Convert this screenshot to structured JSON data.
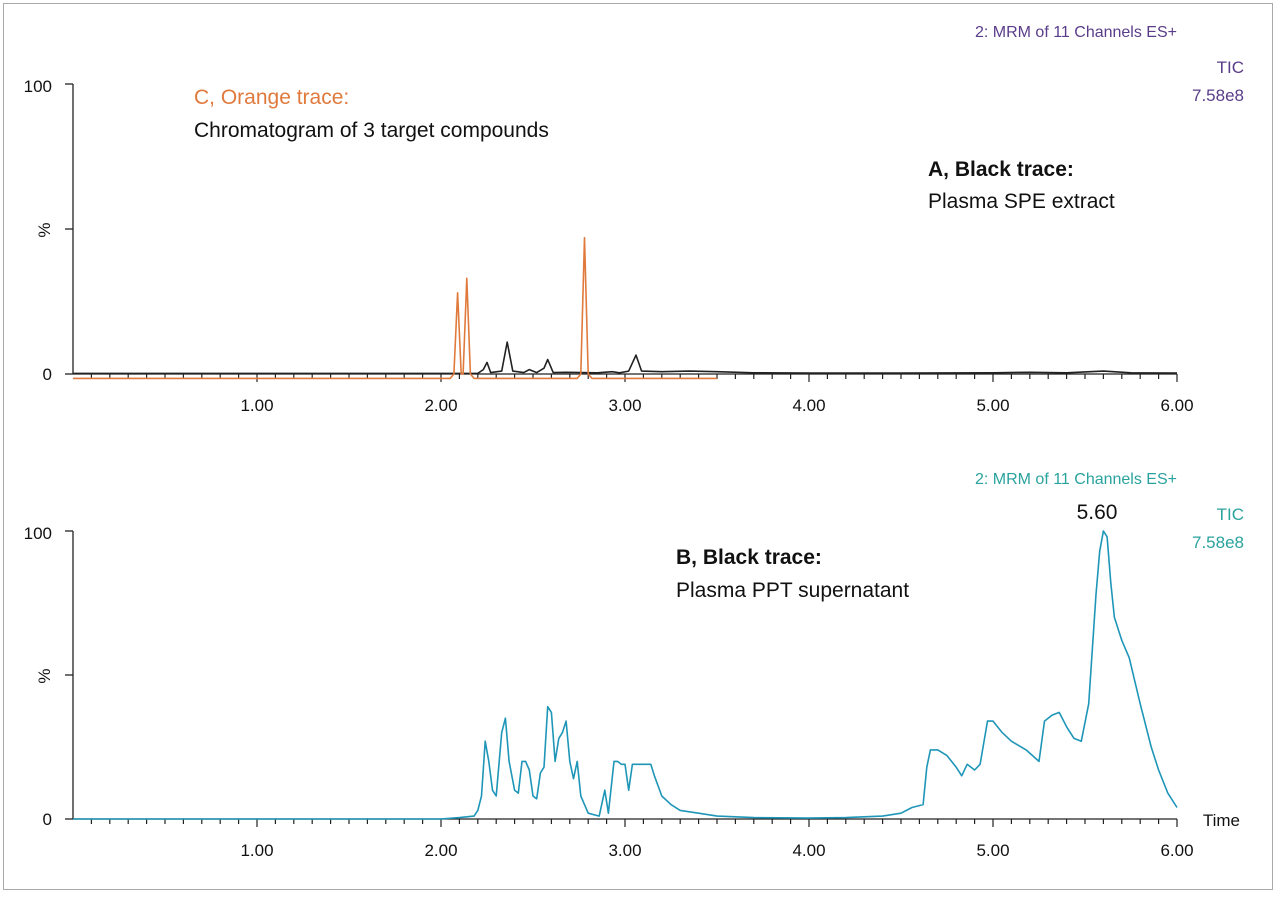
{
  "colors": {
    "axis": "#222222",
    "trace_a": "#222222",
    "trace_c": "#e07a3c",
    "trace_b": "#1f96b8",
    "header_top": "#5a3d8a",
    "header_bottom": "#2aa39e",
    "annotation_c": "#e07a3c",
    "annotation_text": "#111111"
  },
  "chart_data": [
    {
      "type": "line",
      "header": "2: MRM of 11 Channels ES+",
      "tic_label": "TIC",
      "tic_value": "7.58e8",
      "ylabel": "%",
      "xlabel": "",
      "ylim": [
        0,
        100
      ],
      "xlim": [
        0,
        6.0
      ],
      "y_tick_labels": [
        "100",
        "0"
      ],
      "x_tick_labels": [
        "1.00",
        "2.00",
        "3.00",
        "4.00",
        "5.00",
        "6.00"
      ],
      "annotations": [
        {
          "title": "C, Orange trace:",
          "text": "Chromatogram of 3 target compounds"
        },
        {
          "title": "A, Black trace:",
          "text": "Plasma SPE extract"
        }
      ],
      "series": [
        {
          "name": "A",
          "color_key": "trace_a",
          "points": [
            [
              0.0,
              0.2
            ],
            [
              2.2,
              0.2
            ],
            [
              2.23,
              1.5
            ],
            [
              2.25,
              4
            ],
            [
              2.27,
              0.5
            ],
            [
              2.33,
              1
            ],
            [
              2.36,
              11
            ],
            [
              2.39,
              1
            ],
            [
              2.45,
              0.5
            ],
            [
              2.48,
              1.5
            ],
            [
              2.52,
              0.5
            ],
            [
              2.56,
              2
            ],
            [
              2.58,
              5
            ],
            [
              2.61,
              0.5
            ],
            [
              2.68,
              0.6
            ],
            [
              2.85,
              0.4
            ],
            [
              2.93,
              0.8
            ],
            [
              2.97,
              0.4
            ],
            [
              3.02,
              1
            ],
            [
              3.06,
              6.5
            ],
            [
              3.09,
              1
            ],
            [
              3.2,
              0.8
            ],
            [
              3.35,
              1
            ],
            [
              3.5,
              0.8
            ],
            [
              3.7,
              0.4
            ],
            [
              4.0,
              0.3
            ],
            [
              4.5,
              0.3
            ],
            [
              5.0,
              0.4
            ],
            [
              5.2,
              0.6
            ],
            [
              5.4,
              0.4
            ],
            [
              5.6,
              1.0
            ],
            [
              5.75,
              0.4
            ],
            [
              6.0,
              0.3
            ]
          ]
        },
        {
          "name": "C",
          "color_key": "trace_c",
          "points": [
            [
              0.0,
              -1.5
            ],
            [
              2.05,
              -1.5
            ],
            [
              2.07,
              0
            ],
            [
              2.09,
              28
            ],
            [
              2.11,
              0
            ],
            [
              2.12,
              0
            ],
            [
              2.14,
              33
            ],
            [
              2.16,
              0
            ],
            [
              2.18,
              -1.5
            ],
            [
              2.74,
              -1.5
            ],
            [
              2.76,
              0
            ],
            [
              2.78,
              47
            ],
            [
              2.8,
              0
            ],
            [
              2.82,
              -1.5
            ],
            [
              3.5,
              -1.5
            ]
          ]
        }
      ]
    },
    {
      "type": "line",
      "header": "2: MRM of 11 Channels ES+",
      "tic_label": "TIC",
      "tic_value": "7.58e8",
      "ylabel": "%",
      "xlabel": "Time",
      "ylim": [
        0,
        100
      ],
      "xlim": [
        0,
        6.0
      ],
      "y_tick_labels": [
        "100",
        "0"
      ],
      "x_tick_labels": [
        "1.00",
        "2.00",
        "3.00",
        "4.00",
        "5.00",
        "6.00"
      ],
      "peak_label": "5.60",
      "peak_x": 5.6,
      "peak_y": 100,
      "annotations": [
        {
          "title": "B, Black trace:",
          "text": "Plasma PPT supernatant"
        }
      ],
      "series": [
        {
          "name": "B",
          "color_key": "trace_b",
          "points": [
            [
              0.0,
              0
            ],
            [
              2.0,
              0
            ],
            [
              2.1,
              0.5
            ],
            [
              2.18,
              1
            ],
            [
              2.2,
              3
            ],
            [
              2.22,
              8
            ],
            [
              2.24,
              27
            ],
            [
              2.26,
              20
            ],
            [
              2.28,
              10
            ],
            [
              2.3,
              8
            ],
            [
              2.33,
              30
            ],
            [
              2.35,
              35
            ],
            [
              2.37,
              20
            ],
            [
              2.4,
              10
            ],
            [
              2.42,
              9
            ],
            [
              2.44,
              20
            ],
            [
              2.46,
              20
            ],
            [
              2.48,
              17
            ],
            [
              2.5,
              8
            ],
            [
              2.52,
              7
            ],
            [
              2.54,
              16
            ],
            [
              2.56,
              18
            ],
            [
              2.58,
              39
            ],
            [
              2.6,
              37
            ],
            [
              2.62,
              20
            ],
            [
              2.64,
              28
            ],
            [
              2.66,
              30
            ],
            [
              2.68,
              34
            ],
            [
              2.7,
              20
            ],
            [
              2.72,
              14
            ],
            [
              2.74,
              20
            ],
            [
              2.76,
              8
            ],
            [
              2.8,
              2
            ],
            [
              2.86,
              1
            ],
            [
              2.89,
              10
            ],
            [
              2.91,
              2
            ],
            [
              2.94,
              20
            ],
            [
              2.96,
              20
            ],
            [
              2.98,
              19
            ],
            [
              3.0,
              19
            ],
            [
              3.02,
              10
            ],
            [
              3.04,
              19
            ],
            [
              3.14,
              19
            ],
            [
              3.16,
              15
            ],
            [
              3.2,
              8
            ],
            [
              3.25,
              5
            ],
            [
              3.3,
              3
            ],
            [
              3.4,
              2
            ],
            [
              3.5,
              1
            ],
            [
              3.7,
              0.5
            ],
            [
              4.0,
              0.3
            ],
            [
              4.2,
              0.5
            ],
            [
              4.4,
              1
            ],
            [
              4.5,
              2
            ],
            [
              4.56,
              4
            ],
            [
              4.62,
              5
            ],
            [
              4.64,
              18
            ],
            [
              4.66,
              24
            ],
            [
              4.7,
              24
            ],
            [
              4.75,
              22
            ],
            [
              4.8,
              18
            ],
            [
              4.83,
              15
            ],
            [
              4.86,
              19
            ],
            [
              4.9,
              17
            ],
            [
              4.93,
              19
            ],
            [
              4.97,
              34
            ],
            [
              5.0,
              34
            ],
            [
              5.05,
              30
            ],
            [
              5.1,
              27
            ],
            [
              5.18,
              24
            ],
            [
              5.25,
              20
            ],
            [
              5.28,
              34
            ],
            [
              5.32,
              36
            ],
            [
              5.36,
              37
            ],
            [
              5.4,
              32
            ],
            [
              5.44,
              28
            ],
            [
              5.48,
              27
            ],
            [
              5.52,
              40
            ],
            [
              5.56,
              78
            ],
            [
              5.58,
              93
            ],
            [
              5.6,
              100
            ],
            [
              5.62,
              98
            ],
            [
              5.64,
              82
            ],
            [
              5.66,
              70
            ],
            [
              5.7,
              62
            ],
            [
              5.74,
              56
            ],
            [
              5.8,
              40
            ],
            [
              5.86,
              25
            ],
            [
              5.9,
              17
            ],
            [
              5.95,
              9
            ],
            [
              6.0,
              4
            ]
          ]
        }
      ]
    }
  ]
}
